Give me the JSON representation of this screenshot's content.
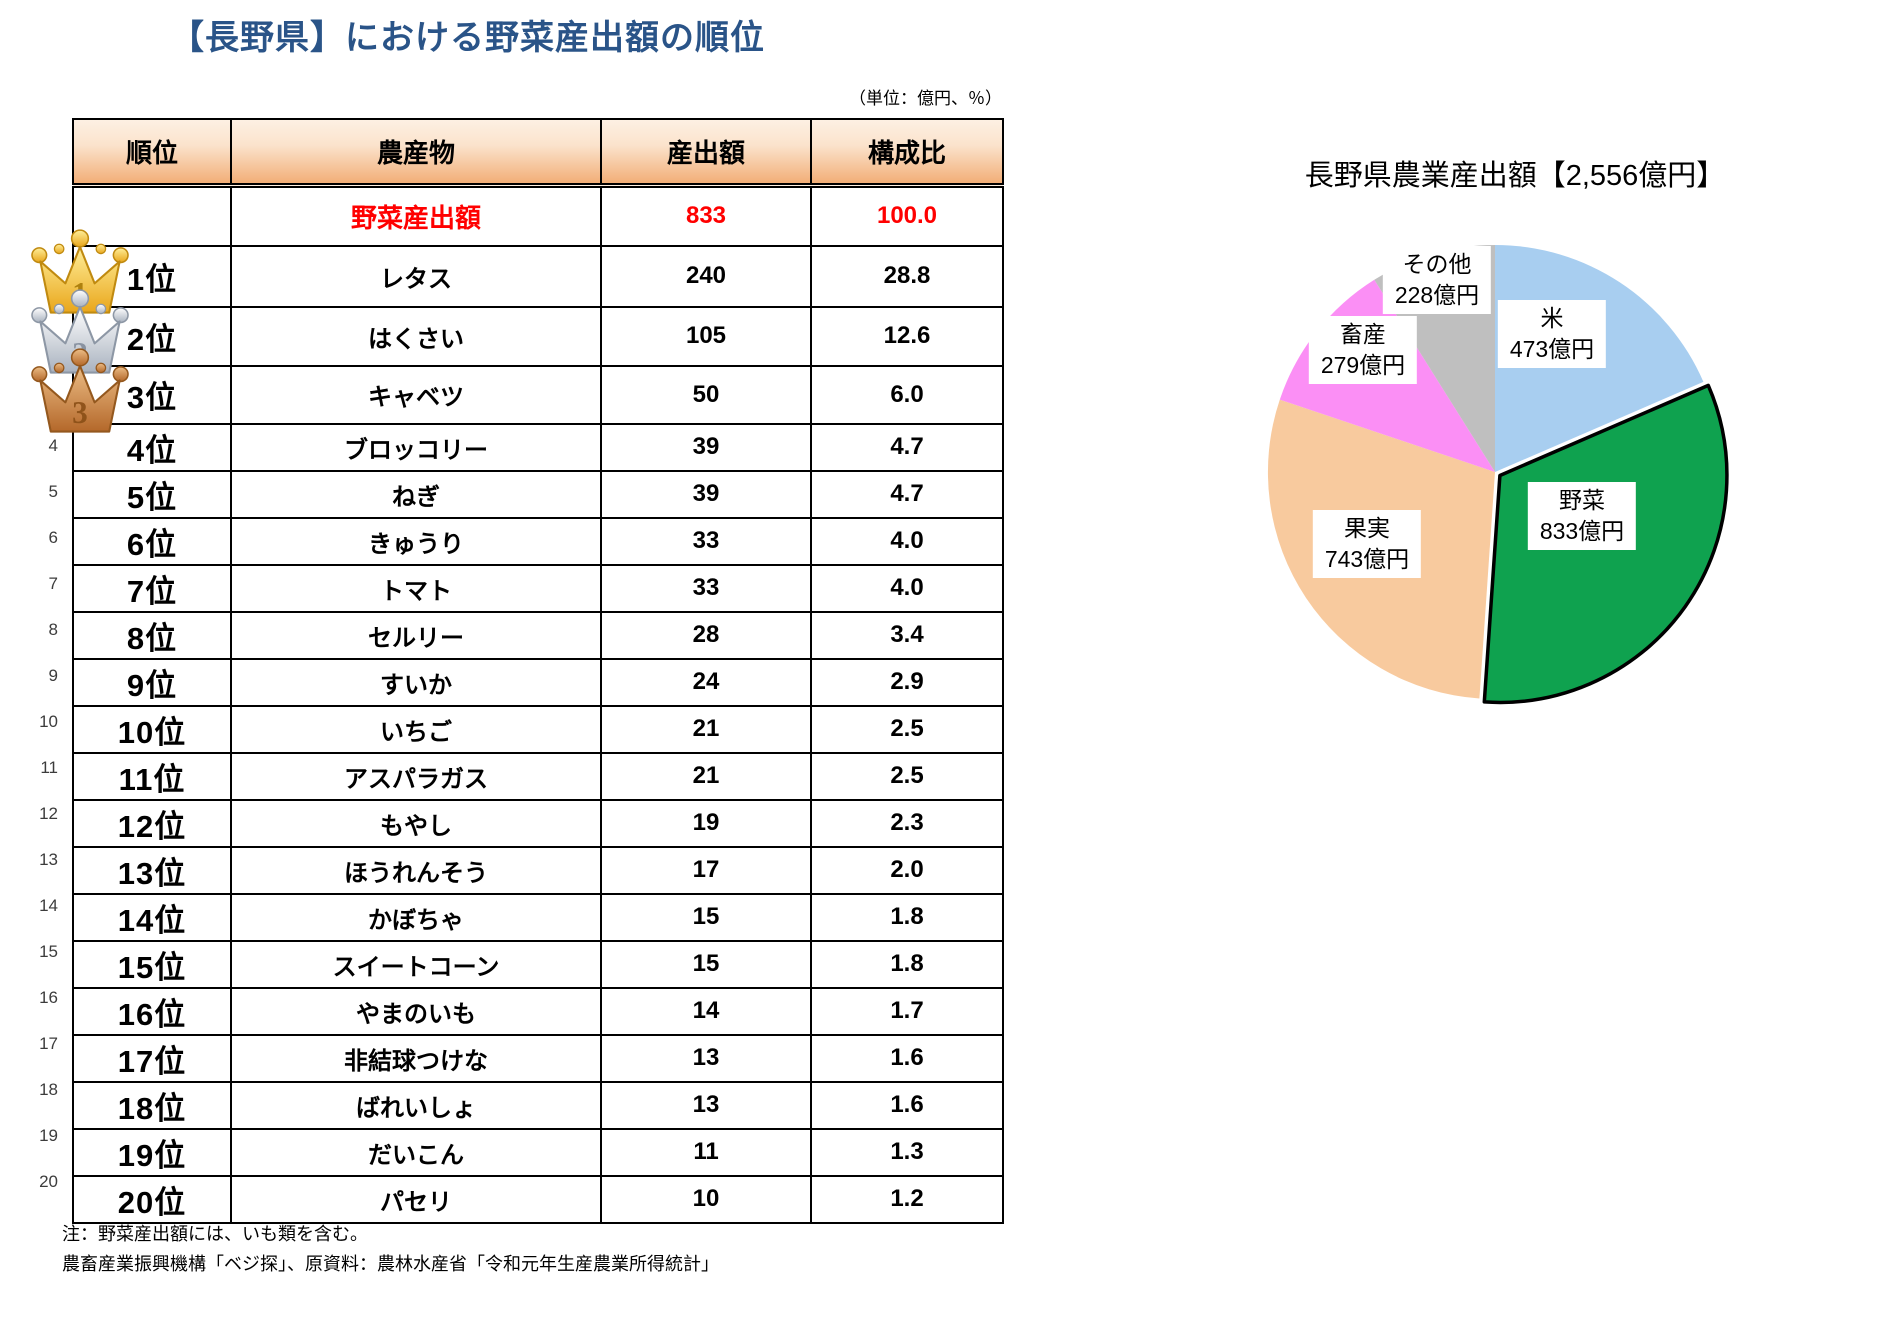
{
  "title": "【長野県】における野菜産出額の順位",
  "unit_note": "（単位：億円、％）",
  "table": {
    "headers": [
      "順位",
      "農産物",
      "産出額",
      "構成比"
    ],
    "summary_row": {
      "product": "野菜産出額",
      "value": "833",
      "share": "100.0"
    },
    "rows": [
      {
        "rank": "1位",
        "product": "レタス",
        "value": "240",
        "share": "28.8",
        "medal": "gold"
      },
      {
        "rank": "2位",
        "product": "はくさい",
        "value": "105",
        "share": "12.6",
        "medal": "silver"
      },
      {
        "rank": "3位",
        "product": "キャベツ",
        "value": "50",
        "share": "6.0",
        "medal": "bronze"
      },
      {
        "rank": "4位",
        "product": "ブロッコリー",
        "value": "39",
        "share": "4.7",
        "margin_no": "4"
      },
      {
        "rank": "5位",
        "product": "ねぎ",
        "value": "39",
        "share": "4.7",
        "margin_no": "5"
      },
      {
        "rank": "6位",
        "product": "きゅうり",
        "value": "33",
        "share": "4.0",
        "margin_no": "6"
      },
      {
        "rank": "7位",
        "product": "トマト",
        "value": "33",
        "share": "4.0",
        "margin_no": "7"
      },
      {
        "rank": "8位",
        "product": "セルリー",
        "value": "28",
        "share": "3.4",
        "margin_no": "8"
      },
      {
        "rank": "9位",
        "product": "すいか",
        "value": "24",
        "share": "2.9",
        "margin_no": "9"
      },
      {
        "rank": "10位",
        "product": "いちご",
        "value": "21",
        "share": "2.5",
        "margin_no": "10"
      },
      {
        "rank": "11位",
        "product": "アスパラガス",
        "value": "21",
        "share": "2.5",
        "margin_no": "11"
      },
      {
        "rank": "12位",
        "product": "もやし",
        "value": "19",
        "share": "2.3",
        "margin_no": "12"
      },
      {
        "rank": "13位",
        "product": "ほうれんそう",
        "value": "17",
        "share": "2.0",
        "margin_no": "13"
      },
      {
        "rank": "14位",
        "product": "かぼちゃ",
        "value": "15",
        "share": "1.8",
        "margin_no": "14"
      },
      {
        "rank": "15位",
        "product": "スイートコーン",
        "value": "15",
        "share": "1.8",
        "margin_no": "15"
      },
      {
        "rank": "16位",
        "product": "やまのいも",
        "value": "14",
        "share": "1.7",
        "margin_no": "16"
      },
      {
        "rank": "17位",
        "product": "非結球つけな",
        "value": "13",
        "share": "1.6",
        "margin_no": "17"
      },
      {
        "rank": "18位",
        "product": "ばれいしょ",
        "value": "13",
        "share": "1.6",
        "margin_no": "18"
      },
      {
        "rank": "19位",
        "product": "だいこん",
        "value": "11",
        "share": "1.3",
        "margin_no": "19"
      },
      {
        "rank": "20位",
        "product": "パセリ",
        "value": "10",
        "share": "1.2",
        "margin_no": "20"
      }
    ]
  },
  "notes": [
    "注：野菜産出額には、いも類を含む。",
    "農畜産業振興機構「ベジ探」、原資料：農林水産省「令和元年生産農業所得統計」"
  ],
  "chart_data": {
    "type": "pie",
    "title": "長野県農業産出額【2,556億円】",
    "total": 2556,
    "unit": "億円",
    "direction": "clockwise",
    "start_angle_deg": 0,
    "legend": "none",
    "labels_style": "inside-white-boxes",
    "slices": [
      {
        "label": "米",
        "value": 473,
        "value_label": "473億円",
        "color": "#a8cef0"
      },
      {
        "label": "野菜",
        "value": 833,
        "value_label": "833億円",
        "color": "#0fa24f",
        "emphasized": true
      },
      {
        "label": "果実",
        "value": 743,
        "value_label": "743億円",
        "color": "#f8ca9e"
      },
      {
        "label": "畜産",
        "value": 279,
        "value_label": "279億円",
        "color": "#fb8ff5"
      },
      {
        "label": "その他",
        "value": 228,
        "value_label": "228億円",
        "color": "#bfbfbf"
      }
    ]
  }
}
